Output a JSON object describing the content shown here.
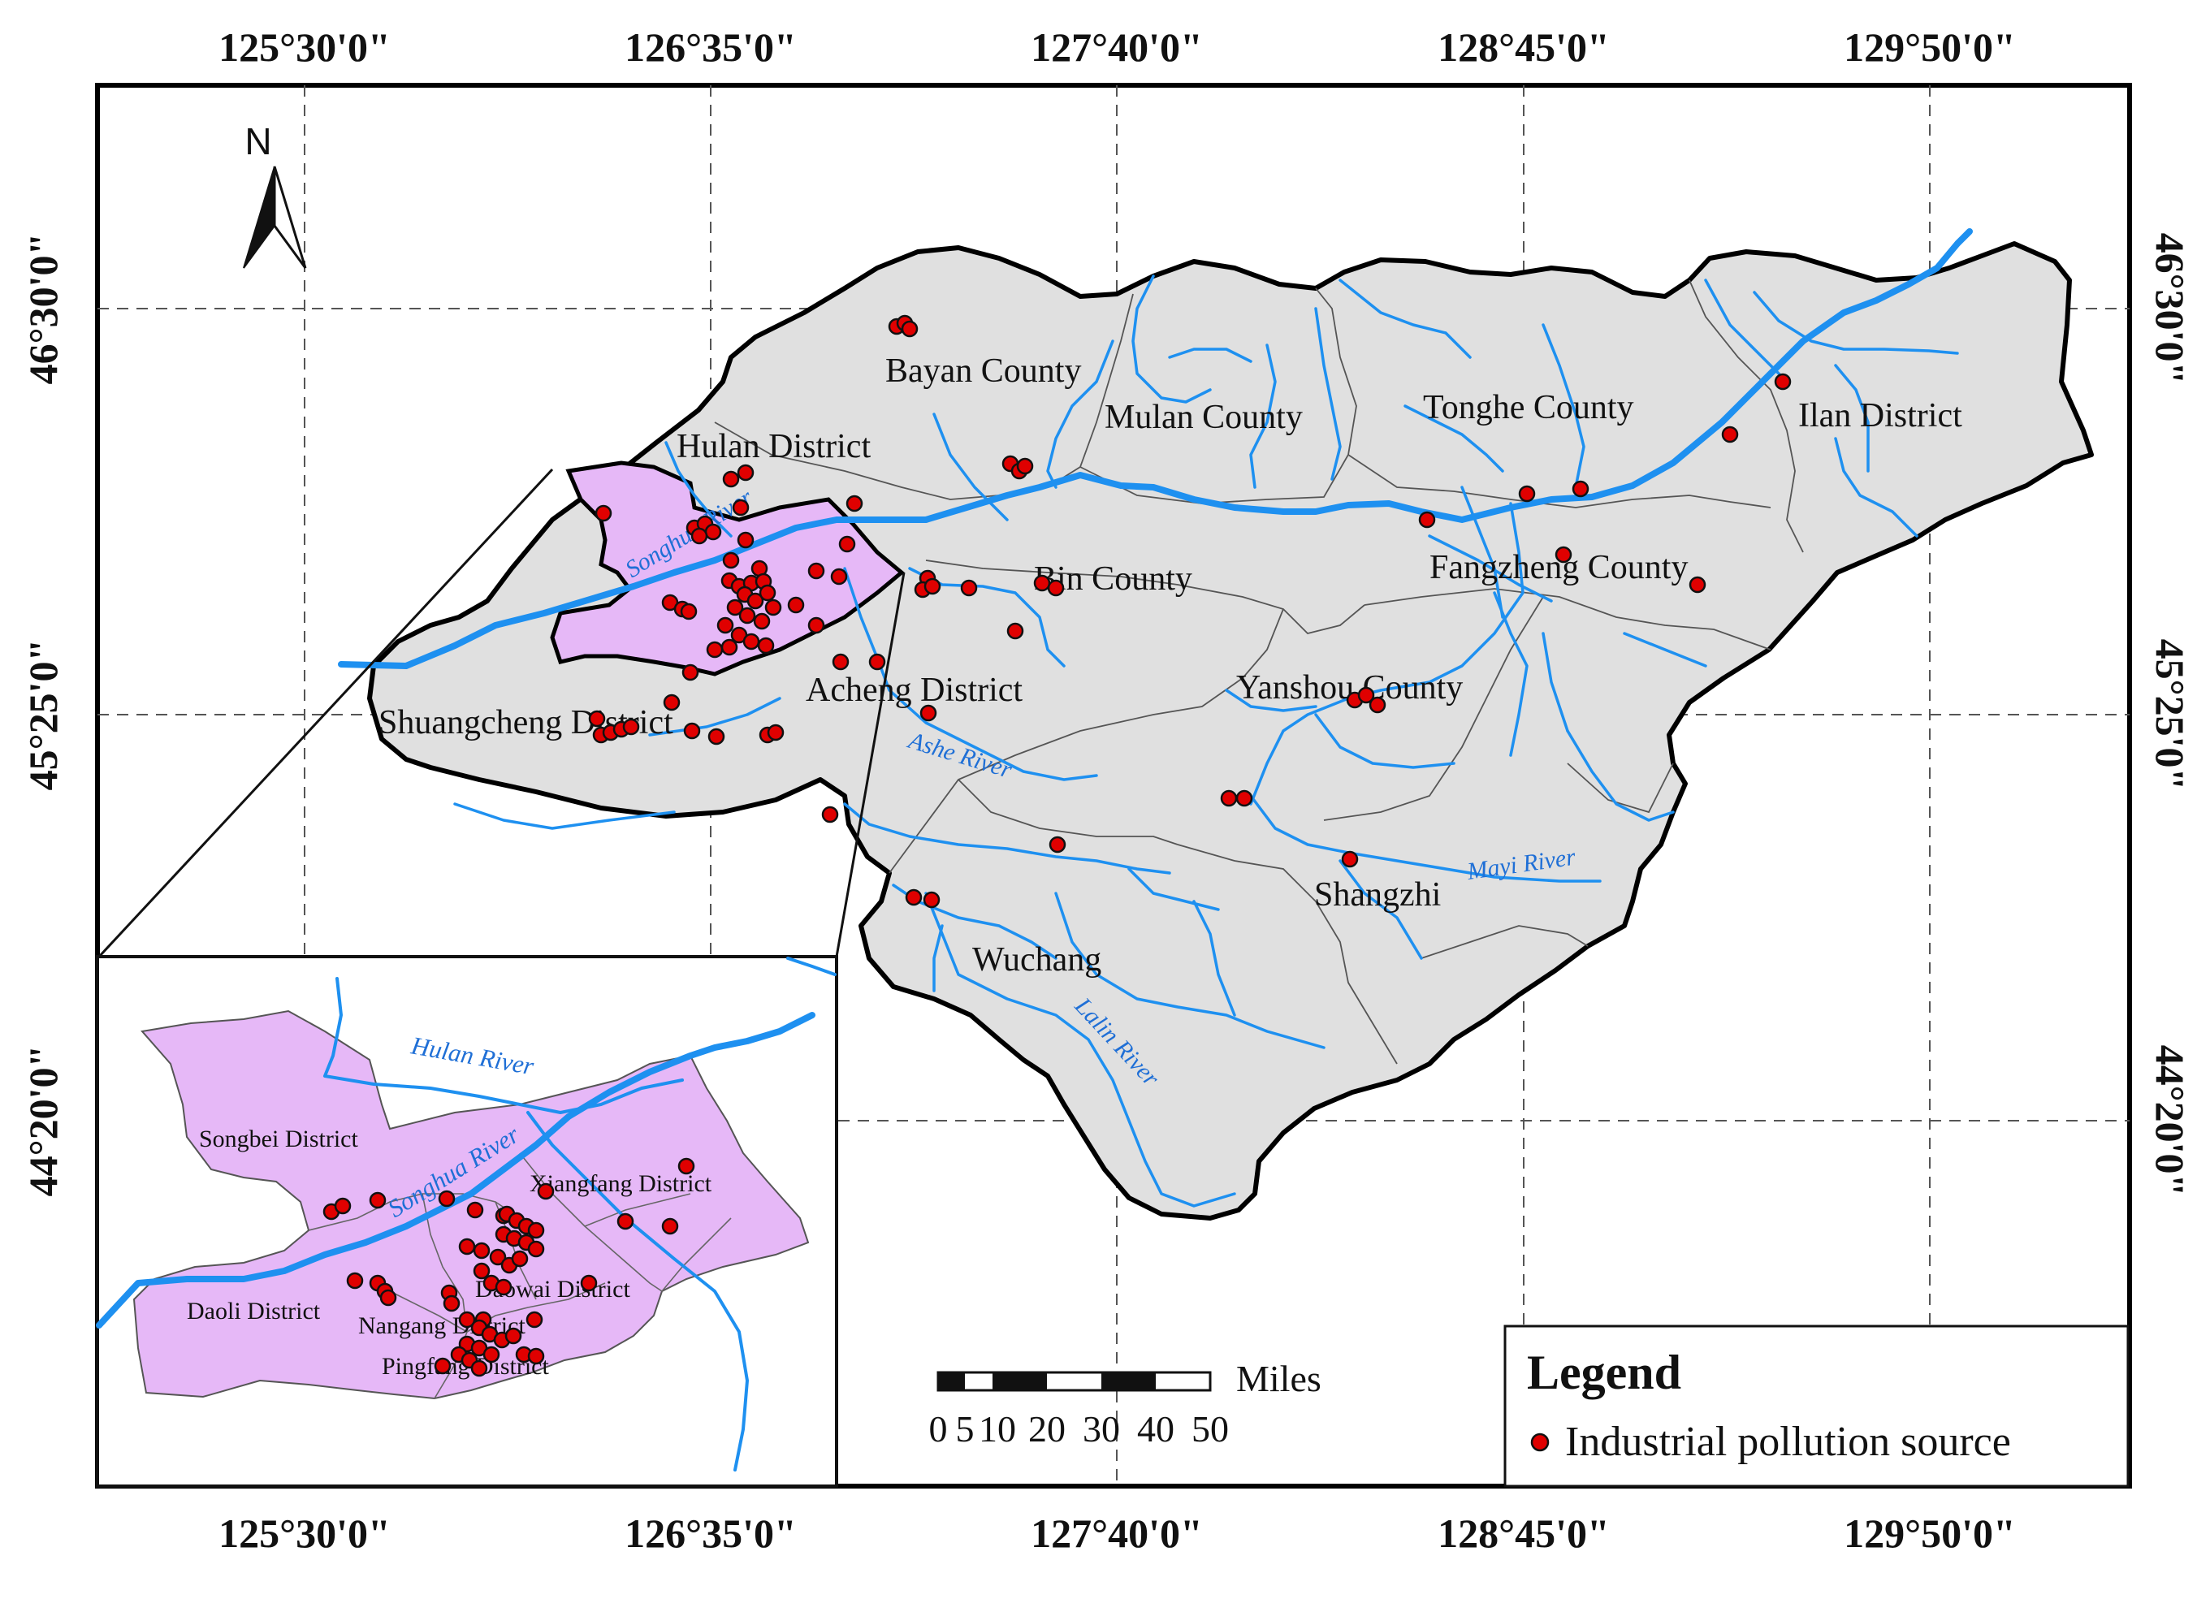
{
  "longitude_labels": [
    "125°30'0\"",
    "126°35'0\"",
    "127°40'0\"",
    "128°45'0\"",
    "129°50'0\""
  ],
  "latitude_labels": [
    "46°30'0\"",
    "45°25'0\"",
    "44°20'0\""
  ],
  "north_label": "N",
  "places": [
    "Bayan County",
    "Mulan County",
    "Tonghe County",
    "Ilan District",
    "Hulan District",
    "Bin County",
    "Fangzheng County",
    "Acheng District",
    "Yanshou County",
    "Shuangcheng District",
    "Shangzhi",
    "Wuchang"
  ],
  "rivers": [
    "Songhua River",
    "Ashe River",
    "Mayi River",
    "Lalin River"
  ],
  "inset": {
    "places": [
      "Songbei District",
      "Xiangfang District",
      "Daoli District",
      "Daowai District",
      "Nangang District",
      "Pingfang District"
    ],
    "rivers": [
      "Hulan River",
      "Songhua River"
    ]
  },
  "legend": {
    "title": "Legend",
    "item": "Industrial pollution source",
    "point_color": "#e00000"
  },
  "scale": {
    "unit": "Miles",
    "labels": [
      "0",
      "5",
      "10",
      "20",
      "30",
      "40",
      "50"
    ]
  },
  "colors": {
    "region_fill": "#e0e0e0",
    "urban_fill": "#e6b8f7",
    "river": "#1e90f0"
  }
}
